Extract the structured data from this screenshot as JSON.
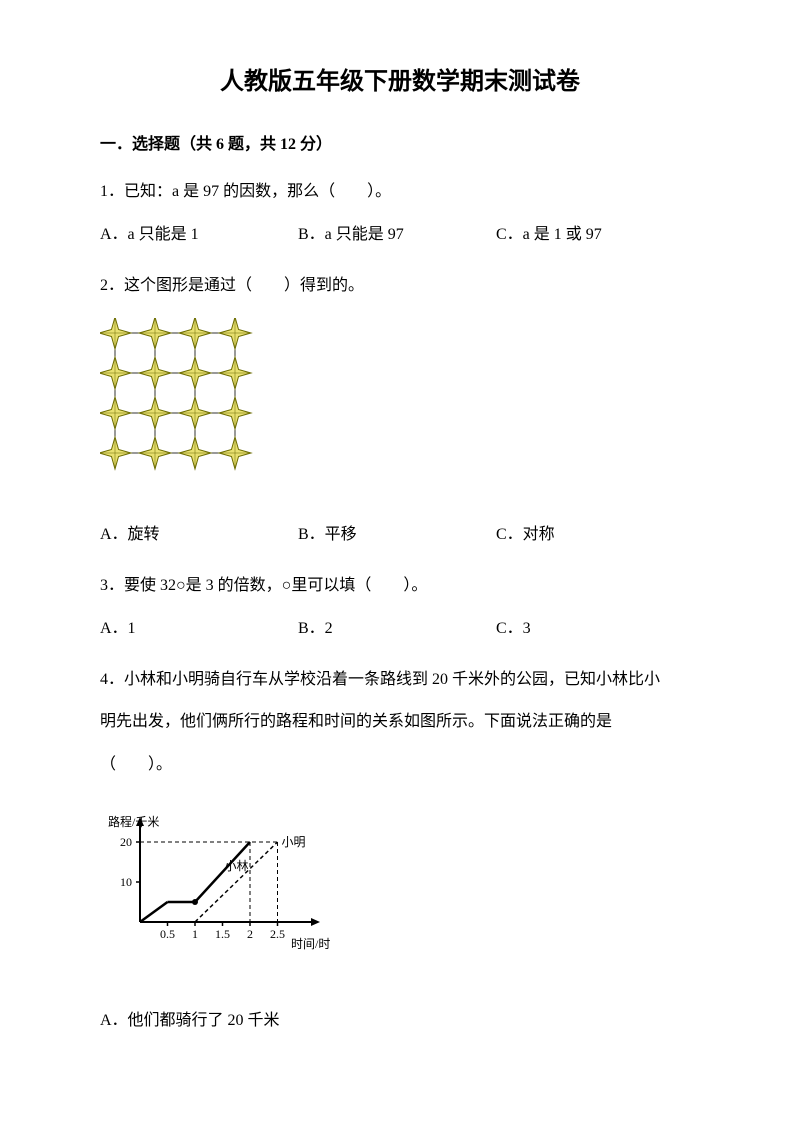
{
  "title": "人教版五年级下册数学期末测试卷",
  "section1": {
    "header": "一．选择题（共 6 题，共 12 分）",
    "q1": {
      "text": "1．已知：a 是 97 的因数，那么（　　）。",
      "optA": "A．a 只能是 1",
      "optB": "B．a 只能是 97",
      "optC": "C．a 是 1 或 97"
    },
    "q2": {
      "text": "2．这个图形是通过（　　）得到的。",
      "optA": "A．旋转",
      "optB": "B．平移",
      "optC": "C．对称",
      "pattern": {
        "rows": 4,
        "cols": 4,
        "spacing": 40,
        "star_fill": "#e8e070",
        "star_stroke": "#6b6b00",
        "line_color": "#333333"
      }
    },
    "q3": {
      "text": "3．要使 32○是 3 的倍数，○里可以填（　　）。",
      "optA": "A．1",
      "optB": "B．2",
      "optC": "C．3"
    },
    "q4": {
      "text_line1": "4．小林和小明骑自行车从学校沿着一条路线到 20 千米外的公园，已知小林比小",
      "text_line2": "明先出发，他们俩所行的路程和时间的关系如图所示。下面说法正确的是",
      "text_line3": "（　　）。",
      "chart": {
        "y_label": "路程/千米",
        "x_label": "时间/时",
        "name1": "小林",
        "name2": "小明",
        "y_ticks": [
          "10",
          "20"
        ],
        "x_ticks": [
          "0.5",
          "1",
          "1.5",
          "2",
          "2.5"
        ],
        "axis_color": "#000000",
        "dash_color": "#000000",
        "series1_x": [
          0,
          0.5,
          1,
          2
        ],
        "series1_y": [
          0,
          5,
          5,
          20
        ],
        "series2_x": [
          1,
          2.5
        ],
        "series2_y": [
          0,
          20
        ]
      },
      "optA": "A．他们都骑行了 20 千米"
    }
  }
}
